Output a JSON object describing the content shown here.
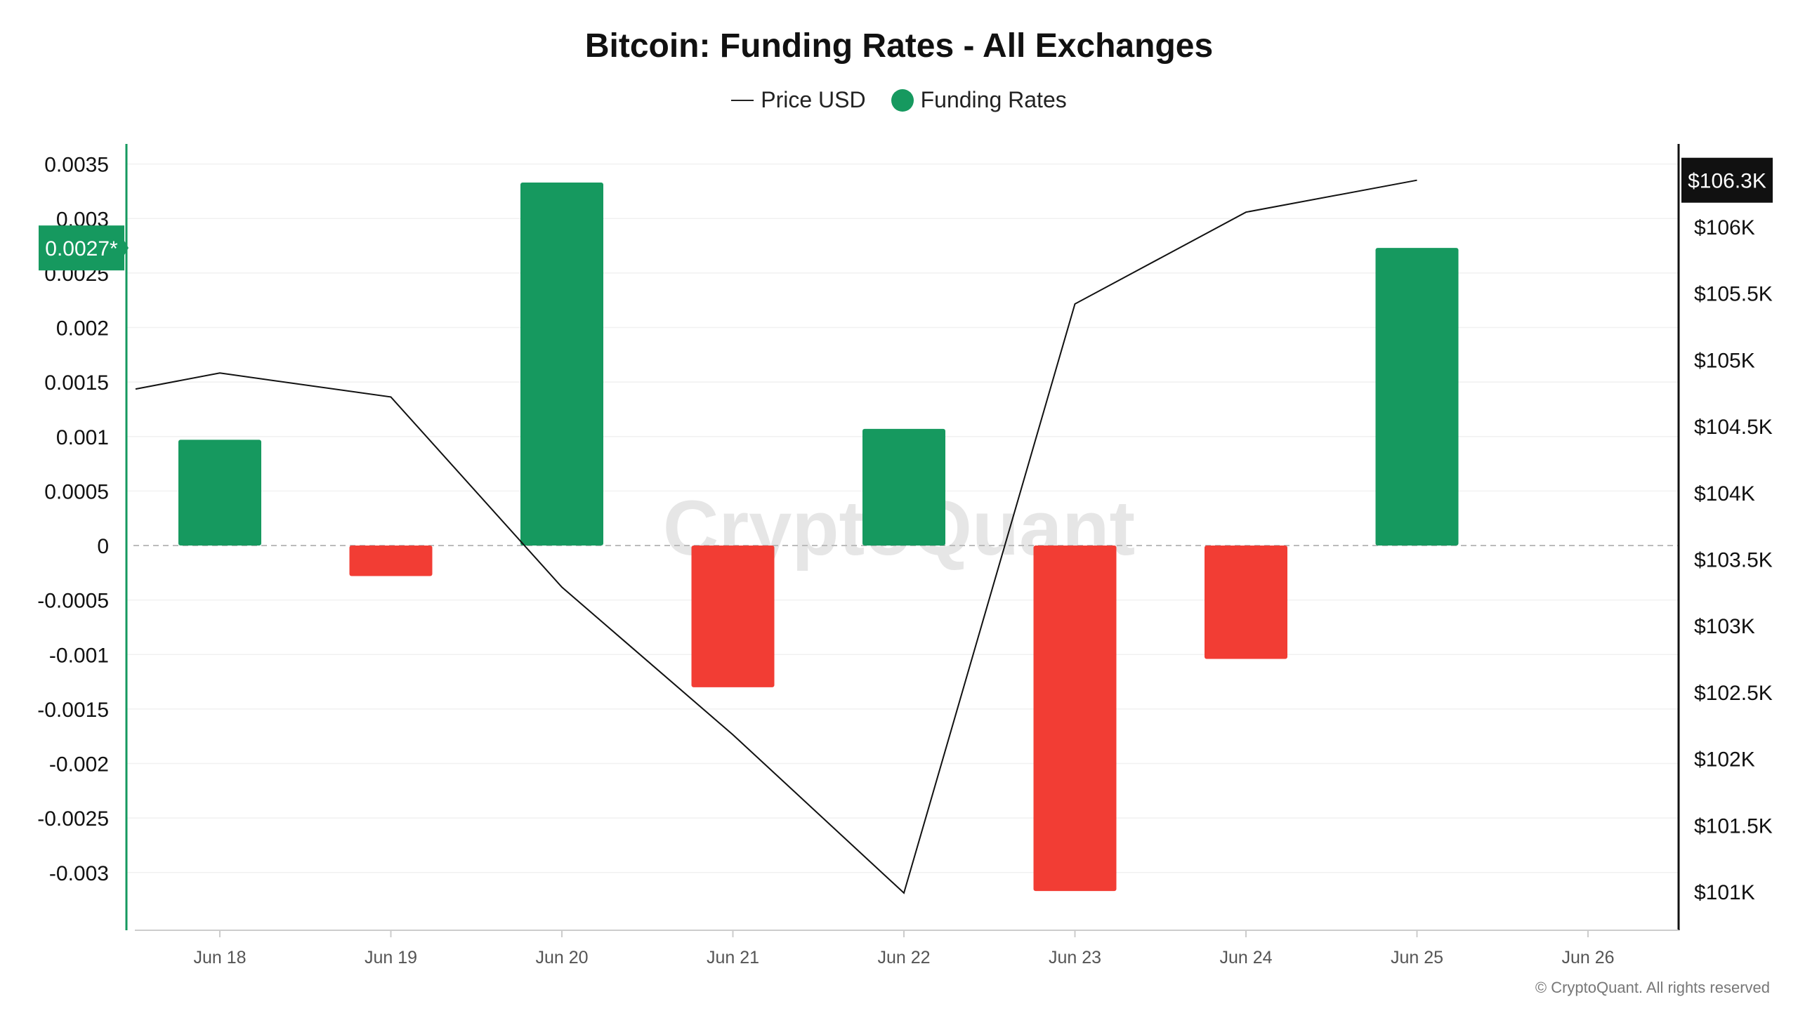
{
  "title": "Bitcoin: Funding Rates - All Exchanges",
  "legend": {
    "price_label": "Price USD",
    "funding_label": "Funding Rates"
  },
  "colors": {
    "positive": "#16995f",
    "negative": "#f23d34",
    "price_line": "#111111",
    "badge_left": "#16995f",
    "badge_right": "#111111"
  },
  "watermark": "CryptoQuant",
  "copyright": "© CryptoQuant. All rights reserved",
  "badges": {
    "funding_current": "0.0027*",
    "price_current": "$106.3K"
  },
  "chart_data": {
    "type": "bar",
    "title": "Bitcoin: Funding Rates - All Exchanges",
    "x_tick_labels": [
      "Jun 18",
      "Jun 19",
      "Jun 20",
      "Jun 21",
      "Jun 22",
      "Jun 23",
      "Jun 24",
      "Jun 25",
      "Jun 26"
    ],
    "left_axis": {
      "ylim": [
        -0.0035,
        0.0035
      ],
      "tick_values": [
        0.0035,
        0.003,
        0.0025,
        0.002,
        0.0015,
        0.001,
        0.0005,
        0,
        -0.0005,
        -0.001,
        -0.0015,
        -0.002,
        -0.0025,
        -0.003
      ],
      "tick_labels": [
        "0.0035",
        "0.003",
        "0.0025",
        "0.002",
        "0.0015",
        "0.001",
        "0.0005",
        "0",
        "-0.0005",
        "-0.001",
        "-0.0015",
        "-0.002",
        "-0.0025",
        "-0.003"
      ]
    },
    "right_axis": {
      "ylim": [
        100700,
        106500
      ],
      "tick_values": [
        106000,
        105500,
        105000,
        104500,
        104000,
        103500,
        103000,
        102500,
        102000,
        101500,
        101000
      ],
      "tick_labels": [
        "$106K",
        "$105.5K",
        "$105K",
        "$104.5K",
        "$104K",
        "$103.5K",
        "$103K",
        "$102.5K",
        "$102K",
        "$101.5K",
        "$101K"
      ]
    },
    "series": [
      {
        "name": "Funding Rates",
        "type": "bar",
        "axis": "left",
        "points": [
          {
            "x": "Jun 18",
            "y": 0.00097
          },
          {
            "x": "Jun 19",
            "y": -0.00028
          },
          {
            "x": "Jun 20",
            "y": 0.00333
          },
          {
            "x": "Jun 21",
            "y": -0.0013
          },
          {
            "x": "Jun 22",
            "y": 0.00107
          },
          {
            "x": "Jun 23",
            "y": -0.00317
          },
          {
            "x": "Jun 24",
            "y": -0.00104
          },
          {
            "x": "Jun 25",
            "y": 0.00273
          }
        ]
      },
      {
        "name": "Price USD",
        "type": "line",
        "axis": "right",
        "points": [
          {
            "x": "Jun 17.5",
            "y": 104780
          },
          {
            "x": "Jun 18",
            "y": 104900
          },
          {
            "x": "Jun 19",
            "y": 104720
          },
          {
            "x": "Jun 20",
            "y": 103290
          },
          {
            "x": "Jun 21",
            "y": 102180
          },
          {
            "x": "Jun 22",
            "y": 100990
          },
          {
            "x": "Jun 23",
            "y": 105420
          },
          {
            "x": "Jun 24",
            "y": 106110
          },
          {
            "x": "Jun 25",
            "y": 106350
          }
        ]
      }
    ]
  }
}
